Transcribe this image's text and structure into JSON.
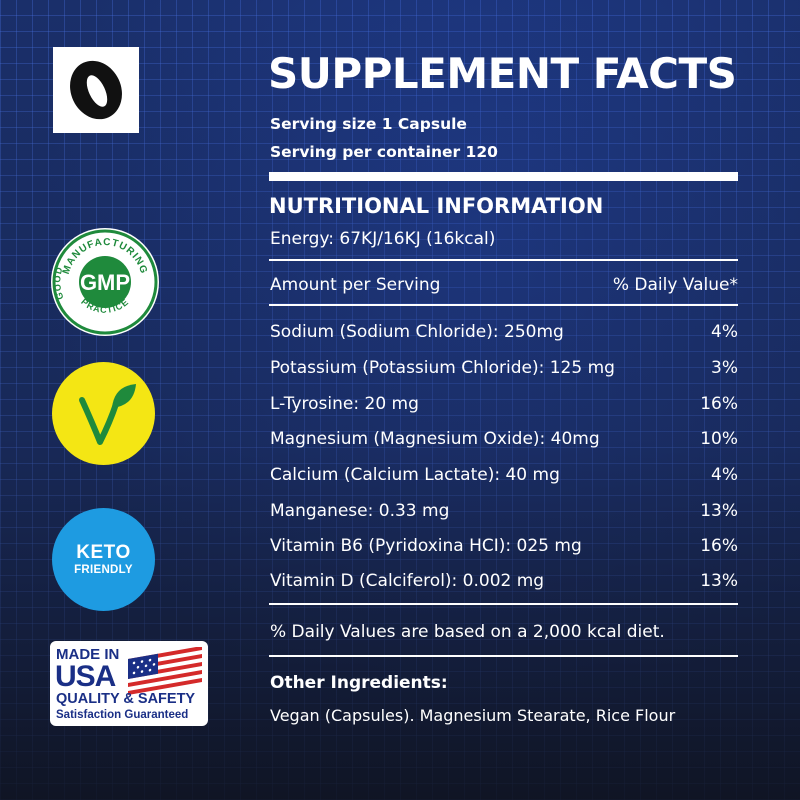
{
  "badges": {
    "gmp": {
      "main": "GMP",
      "arc_top": "MANUFACTURING",
      "left_word": "GOOD",
      "arc_bottom": "PRACTICE"
    },
    "keto": {
      "line1": "KETO",
      "line2": "FRIENDLY"
    },
    "usa": {
      "line1": "MADE IN",
      "line2": "USA",
      "line3": "QUALITY & SAFETY",
      "line4": "Satisfaction Guaranteed"
    }
  },
  "facts": {
    "title": "SUPPLEMENT FACTS",
    "serving_size": "Serving size 1 Capsule",
    "serving_per_container": "Serving per container 120",
    "nutrition_heading": "NUTRITIONAL INFORMATION",
    "energy": "Energy: 67KJ/16KJ (16kcal)",
    "amount_header": "Amount per Serving",
    "dv_header": "% Daily Value*",
    "rows": [
      {
        "name": "Sodium (Sodium Chloride): 250mg",
        "dv": "4%"
      },
      {
        "name": "Potassium (Potassium Chloride): 125 mg",
        "dv": "3%"
      },
      {
        "name": "L-Tyrosine: 20 mg",
        "dv": "16%"
      },
      {
        "name": "Magnesium (Magnesium Oxide): 40mg",
        "dv": "10%"
      },
      {
        "name": "Calcium (Calcium Lactate): 40 mg",
        "dv": "4%"
      },
      {
        "name": "Manganese: 0.33 mg",
        "dv": "13%"
      },
      {
        "name": "Vitamin B6 (Pyridoxina HCI): 025 mg",
        "dv": "16%"
      },
      {
        "name": "Vitamin D (Calciferol): 0.002 mg",
        "dv": "13%"
      }
    ],
    "footnote": "% Daily Values are based on a 2,000 kcal diet.",
    "other_heading": "Other Ingredients:",
    "other_text": "Vegan (Capsules). Magnesium Stearate, Rice Flour"
  },
  "colors": {
    "background": "#1a2f6a",
    "gmp_green": "#1f8a3c",
    "vegan_yellow": "#f4e614",
    "keto_blue": "#1e9be1",
    "usa_navy": "#1a2f86",
    "usa_red": "#d42a2a"
  }
}
